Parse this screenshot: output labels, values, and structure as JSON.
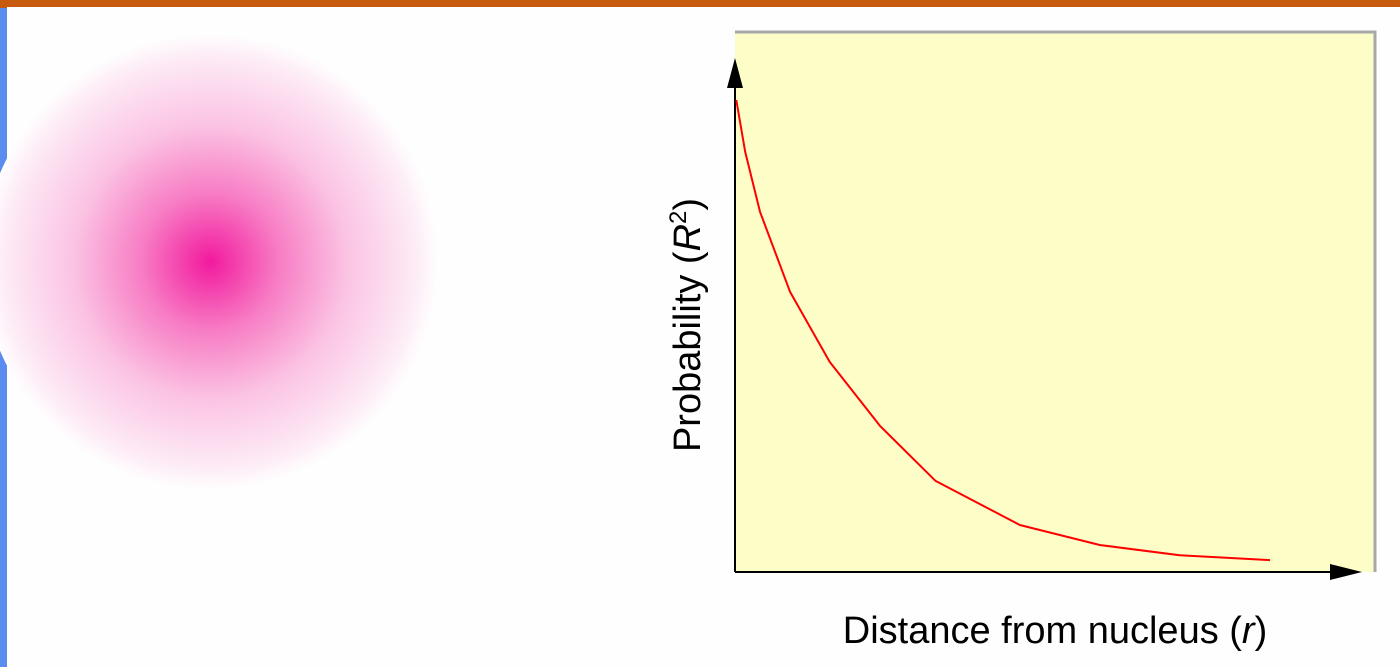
{
  "chart_data": {
    "type": "line",
    "x_label": [
      "Distance from nucleus (",
      "r",
      ")"
    ],
    "y_label": [
      "Probability (",
      "R",
      "2",
      ")"
    ],
    "xlim": [
      0,
      100
    ],
    "ylim": [
      0,
      100
    ],
    "series": [
      {
        "color": "#ff0000",
        "x": [
          0.2,
          1.6,
          3.9,
          8.6,
          14.8,
          22.7,
          31.3,
          44.5,
          57,
          69.5,
          83.6
        ],
        "values": [
          87.4,
          77.8,
          66.7,
          51.9,
          38.9,
          27.0,
          16.9,
          8.7,
          5.0,
          3.1,
          2.2
        ]
      }
    ]
  }
}
